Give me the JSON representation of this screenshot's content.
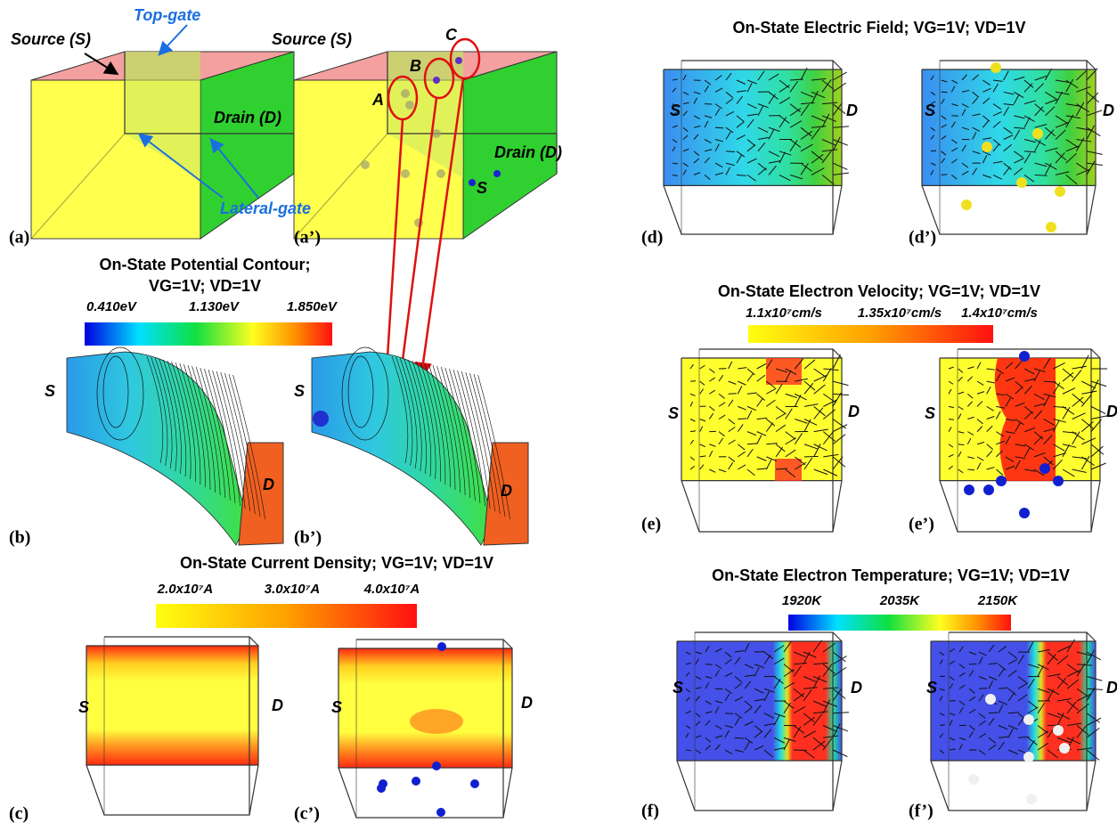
{
  "panel_labels": [
    "(a)",
    "(a’)",
    "(b)",
    "(b’)",
    "(c)",
    "(c’)",
    "(d)",
    "(d’)",
    "(e)",
    "(e’)",
    "(f)",
    "(f’)"
  ],
  "device": {
    "source": "Source (S)",
    "top_gate": "Top-gate",
    "drain": "Drain (D)",
    "lateral_gate": "Lateral-gate",
    "source_prime": "Source (S)",
    "drain_prime": "Drain (D)",
    "s_prime": "S",
    "defects": [
      "A",
      "B",
      "C"
    ]
  },
  "potential": {
    "title_line1": "On-State Potential Contour;",
    "title_line2": "VG=1V; VD=1V",
    "scale_labels": [
      "0.410eV",
      "1.130eV",
      "1.850eV"
    ],
    "side_labels": [
      "S",
      "D",
      "S",
      "D"
    ]
  },
  "current_density": {
    "title": "On-State Current Density; VG=1V; VD=1V",
    "scale_labels": [
      "2.0x10⁷A",
      "3.0x10⁷A",
      "4.0x10⁷A"
    ],
    "side_labels": [
      "S",
      "D",
      "S",
      "D"
    ]
  },
  "electric_field": {
    "title": "On-State Electric Field; VG=1V; VD=1V",
    "side_labels": [
      "S",
      "D",
      "S",
      "D"
    ]
  },
  "electron_velocity": {
    "title": "On-State Electron Velocity; VG=1V; VD=1V",
    "scale_labels": [
      "1.1x10⁷cm/s",
      "1.35x10⁷cm/s",
      "1.4x10⁷cm/s"
    ],
    "side_labels": [
      "S",
      "D",
      "S",
      "D"
    ]
  },
  "electron_temperature": {
    "title": "On-State Electron Temperature; VG=1V; VD=1V",
    "scale_labels": [
      "1920K",
      "2035K",
      "2150K"
    ],
    "side_labels": [
      "S",
      "D",
      "S",
      "D"
    ]
  }
}
